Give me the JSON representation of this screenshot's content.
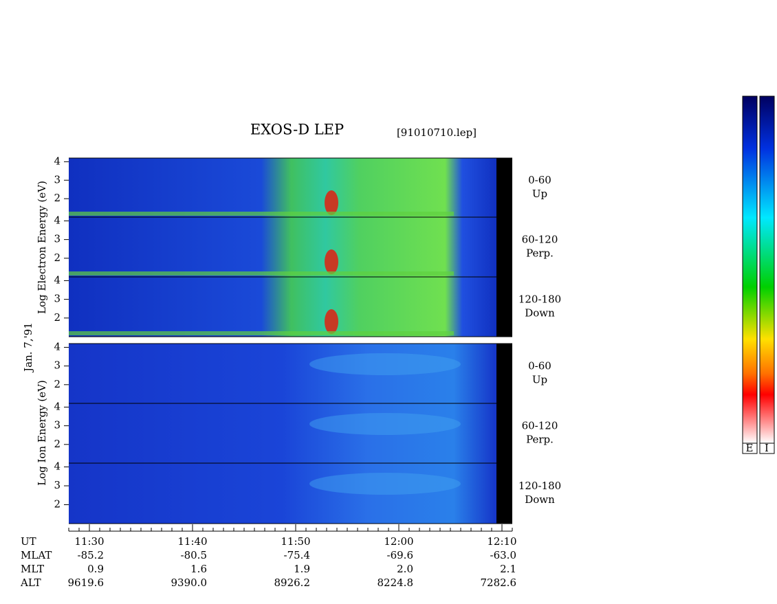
{
  "title": "EXOS-D LEP",
  "file": "[91010710.lep]",
  "date_label": "Jan. 7,'91",
  "electron_label": "Log Electron Energy (eV)",
  "ion_label": "Log Ion Energy (eV)",
  "yticks": [
    2,
    3,
    4
  ],
  "ylim": [
    1,
    4.2
  ],
  "pitch_angles": [
    {
      "range": "0-60",
      "dir": "Up"
    },
    {
      "range": "60-120",
      "dir": "Perp."
    },
    {
      "range": "120-180",
      "dir": "Down"
    }
  ],
  "time_axis": {
    "rows": [
      "UT",
      "MLAT",
      "MLT",
      "ALT"
    ],
    "columns": [
      [
        "11:30",
        "-85.2",
        "0.9",
        "9619.6"
      ],
      [
        "11:40",
        "-80.5",
        "1.6",
        "9390.0"
      ],
      [
        "11:50",
        "-75.4",
        "1.9",
        "8926.2"
      ],
      [
        "12:00",
        "-69.6",
        "2.0",
        "8224.8"
      ],
      [
        "12:10",
        "-63.0",
        "2.1",
        "7282.6"
      ]
    ]
  },
  "colorbar_labels": [
    "E",
    "I"
  ]
}
